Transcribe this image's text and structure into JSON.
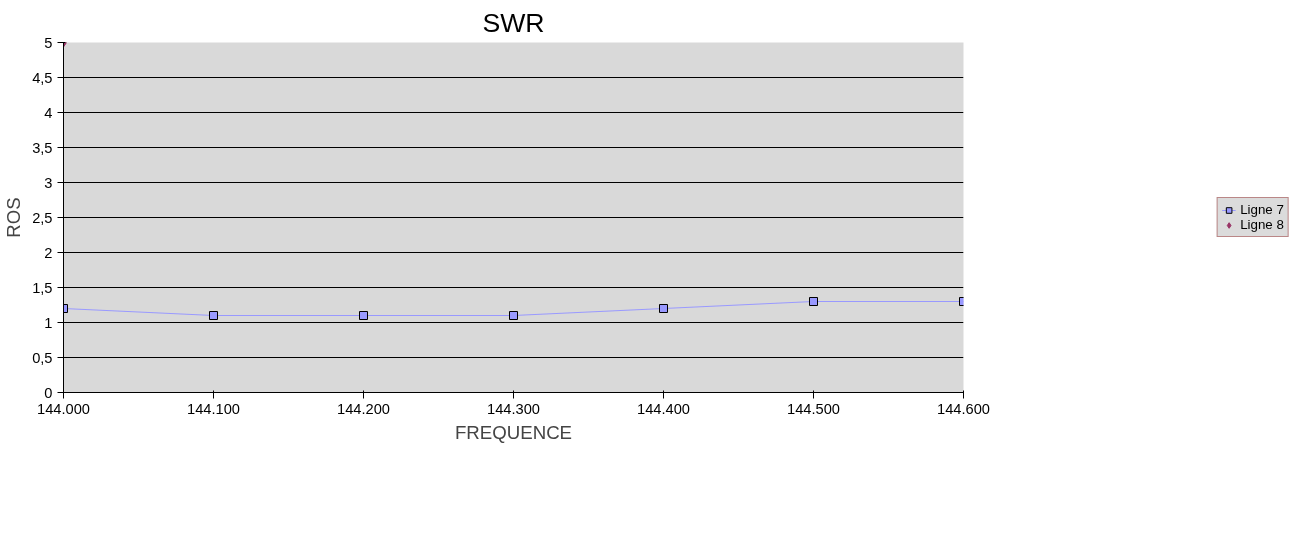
{
  "chart_data": {
    "type": "line",
    "title": "SWR",
    "xlabel": "FREQUENCE",
    "ylabel": "ROS",
    "categories": [
      "144.000",
      "144.100",
      "144.200",
      "144.300",
      "144.400",
      "144.500",
      "144.600"
    ],
    "series": [
      {
        "name": "Ligne 7",
        "marker": "square",
        "color": "#9999ff",
        "values": [
          1.2,
          1.1,
          1.1,
          1.1,
          1.2,
          1.3,
          1.3
        ]
      },
      {
        "name": "Ligne 8",
        "type": "scatter",
        "marker": "diamond",
        "color": "#993366",
        "x": [
          "144.000"
        ],
        "values": [
          5
        ]
      }
    ],
    "ylim": [
      0,
      5
    ],
    "yticks": [
      0,
      {
        "value": 0.5,
        "label": "0,5"
      },
      1,
      {
        "value": 1.5,
        "label": "1,5"
      },
      2,
      {
        "value": 2.5,
        "label": "2,5"
      },
      3,
      {
        "value": 3.5,
        "label": "3,5"
      },
      4,
      {
        "value": 4.5,
        "label": "4,5"
      },
      5
    ],
    "grid": "y",
    "legend": "right"
  }
}
